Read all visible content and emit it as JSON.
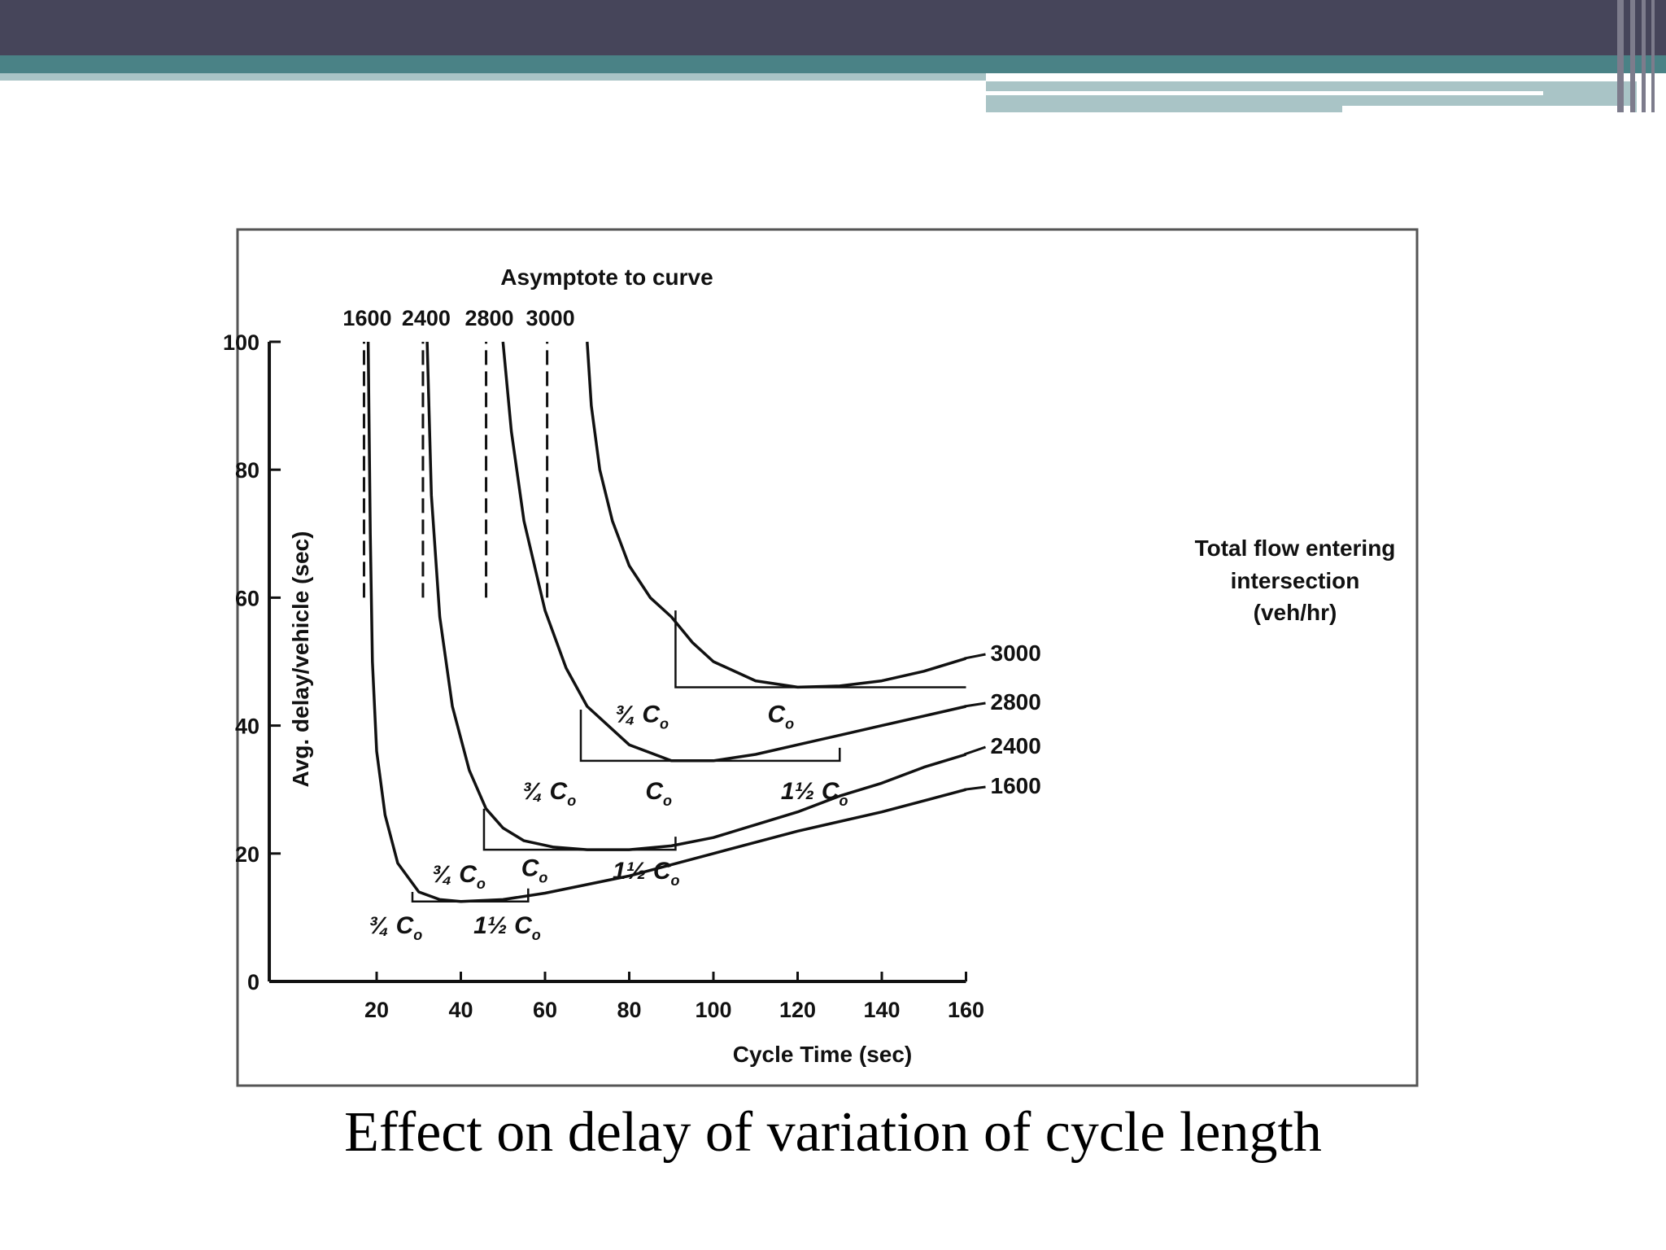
{
  "slide": {
    "caption": "Effect on delay of variation of cycle length",
    "accent_dark": "#46455a",
    "accent_teal": "#4a8286",
    "accent_light": "#a9c4c6"
  },
  "chart_data": {
    "type": "line",
    "title": "",
    "xlabel": "Cycle Time (sec)",
    "ylabel": "Avg. delay/vehicle (sec)",
    "xlim": [
      0,
      160
    ],
    "ylim": [
      0,
      100
    ],
    "x_ticks": [
      20,
      40,
      60,
      80,
      100,
      120,
      140,
      160
    ],
    "y_ticks": [
      0,
      20,
      40,
      60,
      80,
      100
    ],
    "grid": false,
    "asymptote_title": "Asymptote to curve",
    "legend_title": [
      "Total flow entering",
      "intersection",
      "(veh/hr)"
    ],
    "asymptotes": [
      {
        "label": "1600",
        "x": 17
      },
      {
        "label": "2400",
        "x": 31
      },
      {
        "label": "2800",
        "x": 46
      },
      {
        "label": "3000",
        "x": 60.5
      }
    ],
    "series": [
      {
        "name": "1600",
        "x": [
          18,
          18.5,
          19,
          20,
          22,
          25,
          30,
          35,
          40,
          50,
          60,
          80,
          100,
          120,
          140,
          160
        ],
        "y": [
          100,
          70,
          50,
          36,
          26,
          18.5,
          14,
          12.8,
          12.5,
          12.8,
          13.8,
          16.5,
          20,
          23.5,
          26.5,
          30
        ]
      },
      {
        "name": "2400",
        "x": [
          32,
          33,
          35,
          38,
          42,
          46,
          50,
          55,
          62,
          70,
          80,
          90,
          100,
          110,
          120,
          130,
          140,
          150,
          160
        ],
        "y": [
          100,
          76,
          57,
          43,
          33,
          27,
          24,
          22,
          21,
          20.6,
          20.6,
          21.2,
          22.5,
          24.5,
          26.5,
          29,
          31,
          33.5,
          35.5
        ]
      },
      {
        "name": "2800",
        "x": [
          50,
          52,
          55,
          60,
          65,
          70,
          80,
          90,
          100,
          110,
          120,
          130,
          140,
          150,
          160
        ],
        "y": [
          100,
          86,
          72,
          58,
          49,
          43,
          37,
          34.5,
          34.5,
          35.5,
          37,
          38.5,
          40,
          41.5,
          43
        ]
      },
      {
        "name": "3000",
        "x": [
          70,
          71,
          73,
          76,
          80,
          85,
          90,
          95,
          100,
          110,
          120,
          130,
          140,
          150,
          160
        ],
        "y": [
          100,
          90,
          80,
          72,
          65,
          60,
          57,
          53,
          50,
          47,
          46,
          46.2,
          47,
          48.5,
          50.5
        ]
      }
    ],
    "annotations": [
      {
        "text": "¾ C",
        "sub": "o",
        "x": 24.5,
        "y": 7.5
      },
      {
        "text": "1½ C",
        "sub": "o",
        "x": 51,
        "y": 7.5
      },
      {
        "text": "¾ C",
        "sub": "o",
        "x": 39.5,
        "y": 15.5
      },
      {
        "text": "C",
        "sub": "o",
        "x": 57.5,
        "y": 16.5
      },
      {
        "text": "1½ C",
        "sub": "o",
        "x": 84,
        "y": 16
      },
      {
        "text": "¾ C",
        "sub": "o",
        "x": 61,
        "y": 28.5
      },
      {
        "text": "C",
        "sub": "o",
        "x": 87,
        "y": 28.5
      },
      {
        "text": "1½ C",
        "sub": "o",
        "x": 124,
        "y": 28.5
      },
      {
        "text": "¾ C",
        "sub": "o",
        "x": 83,
        "y": 40.5
      },
      {
        "text": "C",
        "sub": "o",
        "x": 116,
        "y": 40.5
      }
    ]
  }
}
